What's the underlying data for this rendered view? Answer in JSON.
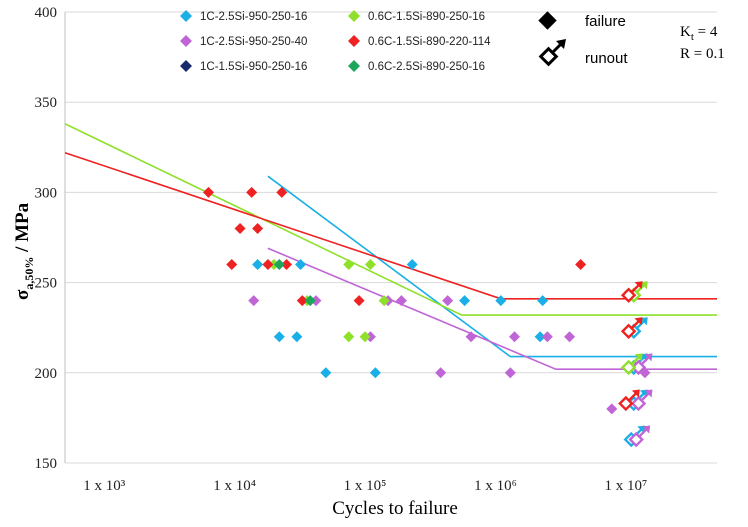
{
  "chart_data": {
    "type": "scatter",
    "xlabel": "Cycles to failure",
    "ylabel_main": "σ",
    "ylabel_sub": "a,50%",
    "ylabel_unit": " / MPa",
    "x_scale": "log",
    "xlim": [
      500,
      50000000
    ],
    "ylim": [
      150,
      400
    ],
    "x_ticks": [
      {
        "value": 1000,
        "label": "1 x 10³"
      },
      {
        "value": 10000,
        "label": "1 x 10⁴"
      },
      {
        "value": 100000,
        "label": "1 x 10⁵"
      },
      {
        "value": 1000000,
        "label": "1 x 10⁶"
      },
      {
        "value": 10000000,
        "label": "1 x 10⁷"
      }
    ],
    "y_ticks": [
      150,
      200,
      250,
      300,
      350,
      400
    ],
    "annotation": {
      "kt_main": "K",
      "kt_sub": "t",
      "kt_rest": " = 4",
      "r_text": "R = 0.1"
    },
    "marker_legend": {
      "failure": "failure",
      "runout": "runout"
    },
    "series": [
      {
        "name": "1C-2.5Si-950-250-16",
        "color": "#1aafe6",
        "failure": [
          [
            15000,
            260
          ],
          [
            32000,
            260
          ],
          [
            22000,
            220
          ],
          [
            30000,
            220
          ],
          [
            50000,
            200
          ],
          [
            120000,
            200
          ],
          [
            230000,
            260
          ],
          [
            580000,
            240
          ],
          [
            1100000,
            240
          ],
          [
            2300000,
            240
          ],
          [
            2200000,
            220
          ]
        ],
        "runout": [
          [
            11500000,
            223
          ],
          [
            11500000,
            203
          ],
          [
            11500000,
            183
          ],
          [
            11000000,
            163
          ]
        ],
        "fit": [
          [
            18000,
            309
          ],
          [
            1300000,
            209
          ],
          [
            50000000,
            209
          ]
        ]
      },
      {
        "name": "1C-2.5Si-950-250-40",
        "color": "#c065d6",
        "failure": [
          [
            14000,
            240
          ],
          [
            42000,
            240
          ],
          [
            110000,
            220
          ],
          [
            150000,
            240
          ],
          [
            190000,
            240
          ],
          [
            380000,
            200
          ],
          [
            430000,
            240
          ],
          [
            650000,
            220
          ],
          [
            1300000,
            200
          ],
          [
            1400000,
            220
          ],
          [
            2500000,
            220
          ],
          [
            3700000,
            220
          ],
          [
            7800000,
            180
          ],
          [
            14000000,
            200
          ]
        ],
        "runout": [
          [
            12500000,
            203
          ],
          [
            12500000,
            183
          ],
          [
            12000000,
            163
          ]
        ],
        "fit": [
          [
            18000,
            269
          ],
          [
            2900000,
            202
          ],
          [
            50000000,
            202
          ]
        ]
      },
      {
        "name": "1C-1.5Si-950-250-16",
        "color": "#1a2a6e",
        "failure": [],
        "runout": [],
        "fit": []
      },
      {
        "name": "0.6C-1.5Si-890-250-16",
        "color": "#8ee02a",
        "failure": [
          [
            20000,
            260
          ],
          [
            36000,
            240
          ],
          [
            75000,
            260
          ],
          [
            75000,
            220
          ],
          [
            100000,
            220
          ],
          [
            110000,
            260
          ],
          [
            140000,
            240
          ]
        ],
        "runout": [
          [
            11500000,
            243
          ],
          [
            10500000,
            223
          ],
          [
            10500000,
            203
          ]
        ],
        "fit": [
          [
            500,
            338
          ],
          [
            550000,
            232
          ],
          [
            50000000,
            232
          ]
        ]
      },
      {
        "name": "0.6C-1.5Si-890-220-114",
        "color": "#ee2222",
        "failure": [
          [
            6300,
            300
          ],
          [
            9500,
            260
          ],
          [
            11000,
            280
          ],
          [
            13500,
            300
          ],
          [
            15000,
            280
          ],
          [
            18000,
            260
          ],
          [
            23000,
            300
          ],
          [
            25000,
            260
          ],
          [
            33000,
            240
          ],
          [
            90000,
            240
          ],
          [
            4500000,
            260
          ]
        ],
        "runout": [
          [
            10500000,
            243
          ],
          [
            10500000,
            223
          ],
          [
            10000000,
            183
          ]
        ],
        "fit": [
          [
            500,
            322
          ],
          [
            1100000,
            241
          ],
          [
            50000000,
            241
          ]
        ]
      },
      {
        "name": "0.6C-2.5Si-890-250-16",
        "color": "#1ea65a",
        "failure": [
          [
            22000,
            260
          ],
          [
            38000,
            240
          ]
        ],
        "runout": [],
        "fit": []
      }
    ]
  }
}
